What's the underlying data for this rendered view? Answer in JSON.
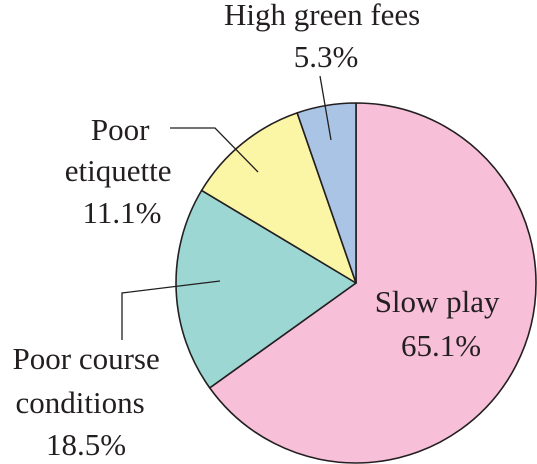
{
  "chart_data": {
    "type": "pie",
    "slices": [
      {
        "label_lines": [
          "Slow play",
          "65.1%"
        ],
        "value": 65.1,
        "color": "#f7bfd8"
      },
      {
        "label_lines": [
          "Poor course",
          "conditions",
          "18.5%"
        ],
        "value": 18.5,
        "color": "#9cd7d3"
      },
      {
        "label_lines": [
          "Poor",
          "etiquette",
          "11.1%"
        ],
        "value": 11.1,
        "color": "#fbf6a6"
      },
      {
        "label_lines": [
          "High green fees",
          "5.3%"
        ],
        "value": 5.3,
        "color": "#a9c4e4"
      }
    ],
    "start_angle_deg": 0,
    "direction": "clockwise"
  }
}
